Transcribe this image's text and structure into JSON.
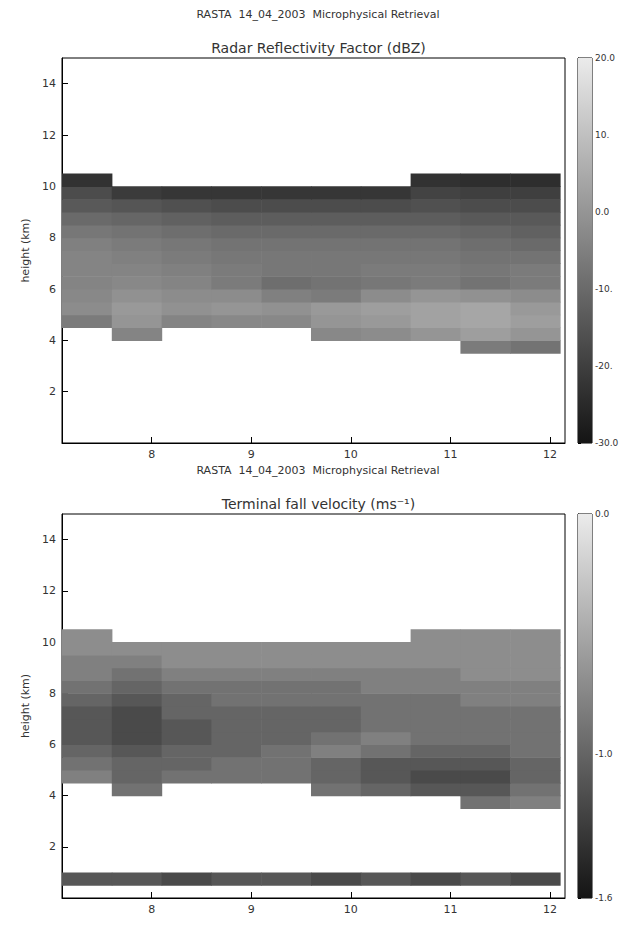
{
  "chart_data": [
    {
      "type": "heatmap",
      "title": "RASTA  14_04_2003  Microphysical Retrieval",
      "subtitle": "Radar Reflectivity Factor (dBZ)",
      "ylabel": "height (km)",
      "xlim": [
        7.1,
        12.15
      ],
      "ylim": [
        0,
        15
      ],
      "xticks": [
        8,
        9,
        10,
        11,
        12
      ],
      "yticks": [
        2,
        4,
        6,
        8,
        10,
        12,
        14
      ],
      "cells": {
        "x": [
          7.35,
          7.85,
          8.35,
          8.85,
          9.35,
          9.85,
          10.35,
          10.85,
          11.35,
          11.85
        ],
        "y": [
          3.75,
          4.25,
          4.75,
          5.25,
          5.75,
          6.25,
          6.75,
          7.25,
          7.75,
          8.25,
          8.75,
          9.25,
          9.75,
          10.25
        ],
        "values": [
          [
            null,
            null,
            null,
            null,
            null,
            null,
            null,
            null,
            -6,
            -8
          ],
          [
            null,
            -4,
            null,
            null,
            null,
            -3,
            -2,
            0,
            2,
            0
          ],
          [
            -6,
            0,
            -4,
            -3,
            -3,
            0,
            1,
            3,
            4,
            2
          ],
          [
            -2,
            1,
            -1,
            0,
            -1,
            1,
            2,
            3,
            4,
            1
          ],
          [
            -3,
            -1,
            -2,
            -2,
            -5,
            -6,
            -2,
            0,
            -1,
            -2
          ],
          [
            -4,
            -3,
            -4,
            -6,
            -9,
            -8,
            -7,
            -6,
            -8,
            -6
          ],
          [
            -4,
            -4,
            -5,
            -6,
            -7,
            -7,
            -6,
            -6,
            -7,
            -6
          ],
          [
            -4,
            -5,
            -6,
            -7,
            -7,
            -7,
            -7,
            -7,
            -8,
            -8
          ],
          [
            -5,
            -6,
            -7,
            -8,
            -8,
            -8,
            -8,
            -8,
            -9,
            -10
          ],
          [
            -7,
            -8,
            -9,
            -10,
            -10,
            -10,
            -10,
            -10,
            -11,
            -12
          ],
          [
            -10,
            -11,
            -12,
            -13,
            -13,
            -13,
            -13,
            -13,
            -14,
            -14
          ],
          [
            -14,
            -15,
            -16,
            -17,
            -17,
            -17,
            -17,
            -16,
            -17,
            -17
          ],
          [
            -17,
            -21,
            -22,
            -22,
            -22,
            -22,
            -22,
            -19,
            -20,
            -20
          ],
          [
            -23,
            null,
            null,
            null,
            null,
            null,
            null,
            -23,
            -24,
            -24
          ]
        ]
      },
      "colorbar": {
        "range": [
          -30,
          20
        ],
        "ticks": [
          {
            "value": 20,
            "label": "20.0"
          },
          {
            "value": 10,
            "label": "10."
          },
          {
            "value": 0,
            "label": "0.0"
          },
          {
            "value": -10,
            "label": "-10."
          },
          {
            "value": -20,
            "label": "-20."
          },
          {
            "value": -30,
            "label": "-30.0"
          }
        ],
        "colors": [
          "#141414",
          "#ebebeb"
        ]
      }
    },
    {
      "type": "heatmap",
      "title": "RASTA  14_04_2003  Microphysical Retrieval",
      "subtitle": "Terminal fall velocity (ms⁻¹)",
      "ylabel": "height (km)",
      "xlim": [
        7.1,
        12.15
      ],
      "ylim": [
        0,
        15
      ],
      "xticks": [
        8,
        9,
        10,
        11,
        12
      ],
      "yticks": [
        2,
        4,
        6,
        8,
        10,
        12,
        14
      ],
      "cells": {
        "x": [
          7.35,
          7.85,
          8.35,
          8.85,
          9.35,
          9.85,
          10.35,
          10.85,
          11.35,
          11.85
        ],
        "y": [
          0.75,
          3.75,
          4.25,
          4.75,
          5.25,
          5.75,
          6.25,
          6.75,
          7.25,
          7.75,
          8.25,
          8.75,
          9.25,
          9.75,
          10.25
        ],
        "values": [
          [
            -1.1,
            -1.1,
            -1.2,
            -1.1,
            -1.1,
            -1.2,
            -1.1,
            -1.2,
            -1.1,
            -1.2
          ],
          [
            null,
            null,
            null,
            null,
            null,
            null,
            null,
            null,
            -0.9,
            -0.8
          ],
          [
            null,
            -0.9,
            null,
            null,
            null,
            -0.9,
            -1.0,
            -1.1,
            -1.1,
            -0.9
          ],
          [
            -0.8,
            -1.0,
            -0.9,
            -0.9,
            -0.9,
            -1.0,
            -1.1,
            -1.2,
            -1.2,
            -1.0
          ],
          [
            -0.9,
            -1.0,
            -1.0,
            -0.9,
            -0.9,
            -1.0,
            -1.1,
            -1.1,
            -1.1,
            -1.0
          ],
          [
            -1.0,
            -1.1,
            -1.0,
            -1.0,
            -0.9,
            -0.8,
            -0.9,
            -1.0,
            -1.0,
            -0.9
          ],
          [
            -1.1,
            -1.2,
            -1.1,
            -1.0,
            -1.0,
            -0.9,
            -0.8,
            -0.9,
            -0.9,
            -0.9
          ],
          [
            -1.1,
            -1.2,
            -1.1,
            -1.0,
            -1.0,
            -1.0,
            -0.9,
            -0.9,
            -0.9,
            -0.9
          ],
          [
            -1.1,
            -1.2,
            -1.0,
            -1.0,
            -1.0,
            -1.0,
            -0.9,
            -0.9,
            -0.9,
            -0.9
          ],
          [
            -1.0,
            -1.1,
            -1.0,
            -0.9,
            -0.9,
            -0.9,
            -0.9,
            -0.9,
            -0.8,
            -0.8
          ],
          [
            -0.9,
            -1.0,
            -0.9,
            -0.9,
            -0.9,
            -0.9,
            -0.8,
            -0.8,
            -0.8,
            -0.8
          ],
          [
            -0.8,
            -0.9,
            -0.8,
            -0.8,
            -0.8,
            -0.8,
            -0.8,
            -0.8,
            -0.7,
            -0.7
          ],
          [
            -0.8,
            -0.8,
            -0.7,
            -0.7,
            -0.7,
            -0.7,
            -0.7,
            -0.7,
            -0.7,
            -0.7
          ],
          [
            -0.7,
            -0.7,
            -0.7,
            -0.7,
            -0.7,
            -0.7,
            -0.7,
            -0.7,
            -0.7,
            -0.7
          ],
          [
            -0.7,
            null,
            null,
            null,
            null,
            null,
            null,
            -0.7,
            -0.7,
            -0.7
          ]
        ]
      },
      "colorbar": {
        "range": [
          -1.6,
          0.0
        ],
        "ticks": [
          {
            "value": 0,
            "label": "0.0"
          },
          {
            "value": -1,
            "label": "-1.0"
          },
          {
            "value": -1.6,
            "label": "-1.6"
          }
        ],
        "colors": [
          "#141414",
          "#ebebeb"
        ]
      }
    }
  ]
}
